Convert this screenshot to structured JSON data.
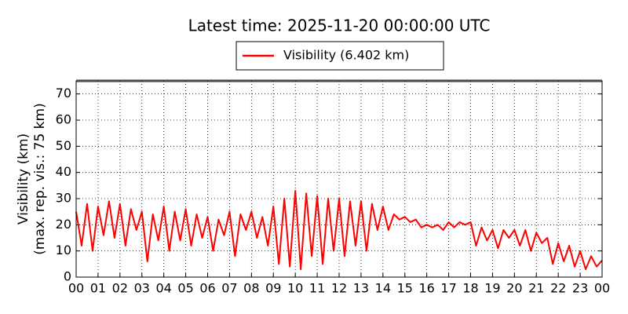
{
  "chart_data": {
    "type": "line",
    "title": "Latest time: 2025-11-20 00:00:00 UTC",
    "ylabel": [
      "Visibility (km)",
      "(max. rep. vis.: 75 km)"
    ],
    "legend": "top",
    "grid": true,
    "xlim": [
      0,
      24
    ],
    "ylim": [
      0,
      75
    ],
    "yticks": [
      0,
      10,
      20,
      30,
      40,
      50,
      60,
      70
    ],
    "xticks": [
      {
        "value": 0,
        "label": "00"
      },
      {
        "value": 1,
        "label": "01"
      },
      {
        "value": 2,
        "label": "02"
      },
      {
        "value": 3,
        "label": "03"
      },
      {
        "value": 4,
        "label": "04"
      },
      {
        "value": 5,
        "label": "05"
      },
      {
        "value": 6,
        "label": "06"
      },
      {
        "value": 7,
        "label": "07"
      },
      {
        "value": 8,
        "label": "08"
      },
      {
        "value": 9,
        "label": "09"
      },
      {
        "value": 10,
        "label": "10"
      },
      {
        "value": 11,
        "label": "11"
      },
      {
        "value": 12,
        "label": "12"
      },
      {
        "value": 13,
        "label": "13"
      },
      {
        "value": 14,
        "label": "14"
      },
      {
        "value": 15,
        "label": "15"
      },
      {
        "value": 16,
        "label": "16"
      },
      {
        "value": 17,
        "label": "17"
      },
      {
        "value": 18,
        "label": "18"
      },
      {
        "value": 19,
        "label": "19"
      },
      {
        "value": 20,
        "label": "20"
      },
      {
        "value": 21,
        "label": "21"
      },
      {
        "value": 22,
        "label": "22"
      },
      {
        "value": 23,
        "label": "23"
      },
      {
        "value": 24,
        "label": "00"
      }
    ],
    "x": [
      0,
      0.25,
      0.5,
      0.75,
      1,
      1.25,
      1.5,
      1.75,
      2,
      2.25,
      2.5,
      2.75,
      3,
      3.25,
      3.5,
      3.75,
      4,
      4.25,
      4.5,
      4.75,
      5,
      5.25,
      5.5,
      5.75,
      6,
      6.25,
      6.5,
      6.75,
      7,
      7.25,
      7.5,
      7.75,
      8,
      8.25,
      8.5,
      8.75,
      9,
      9.25,
      9.5,
      9.75,
      10,
      10.25,
      10.5,
      10.75,
      11,
      11.25,
      11.5,
      11.75,
      12,
      12.25,
      12.5,
      12.75,
      13,
      13.25,
      13.5,
      13.75,
      14,
      14.25,
      14.5,
      14.75,
      15,
      15.25,
      15.5,
      15.75,
      16,
      16.25,
      16.5,
      16.75,
      17,
      17.25,
      17.5,
      17.75,
      18,
      18.25,
      18.5,
      18.75,
      19,
      19.25,
      19.5,
      19.75,
      20,
      20.25,
      20.5,
      20.75,
      21,
      21.25,
      21.5,
      21.75,
      22,
      22.25,
      22.5,
      22.75,
      23,
      23.25,
      23.5,
      23.75,
      24
    ],
    "series": [
      {
        "name": "Visibility (6.402 km)",
        "color": "#ff0000",
        "values": [
          25,
          12,
          28,
          10,
          27,
          16,
          29,
          15,
          28,
          12,
          26,
          18,
          25,
          6,
          24,
          14,
          27,
          10,
          25,
          14,
          26,
          12,
          24,
          15,
          23,
          10,
          22,
          16,
          25,
          8,
          24,
          18,
          25,
          15,
          23,
          12,
          27,
          5,
          30,
          4,
          33,
          3,
          32,
          8,
          31,
          5,
          30,
          10,
          30,
          8,
          29,
          12,
          29,
          10,
          28,
          18,
          27,
          18,
          24,
          22,
          23,
          21,
          22,
          19,
          20,
          19,
          20,
          18,
          21,
          19,
          21,
          20,
          21,
          12,
          19,
          14,
          18,
          11,
          18,
          15,
          18,
          12,
          18,
          10,
          17,
          13,
          15,
          5,
          13,
          6,
          12,
          4,
          10,
          3,
          8,
          4,
          6.402
        ]
      }
    ]
  }
}
